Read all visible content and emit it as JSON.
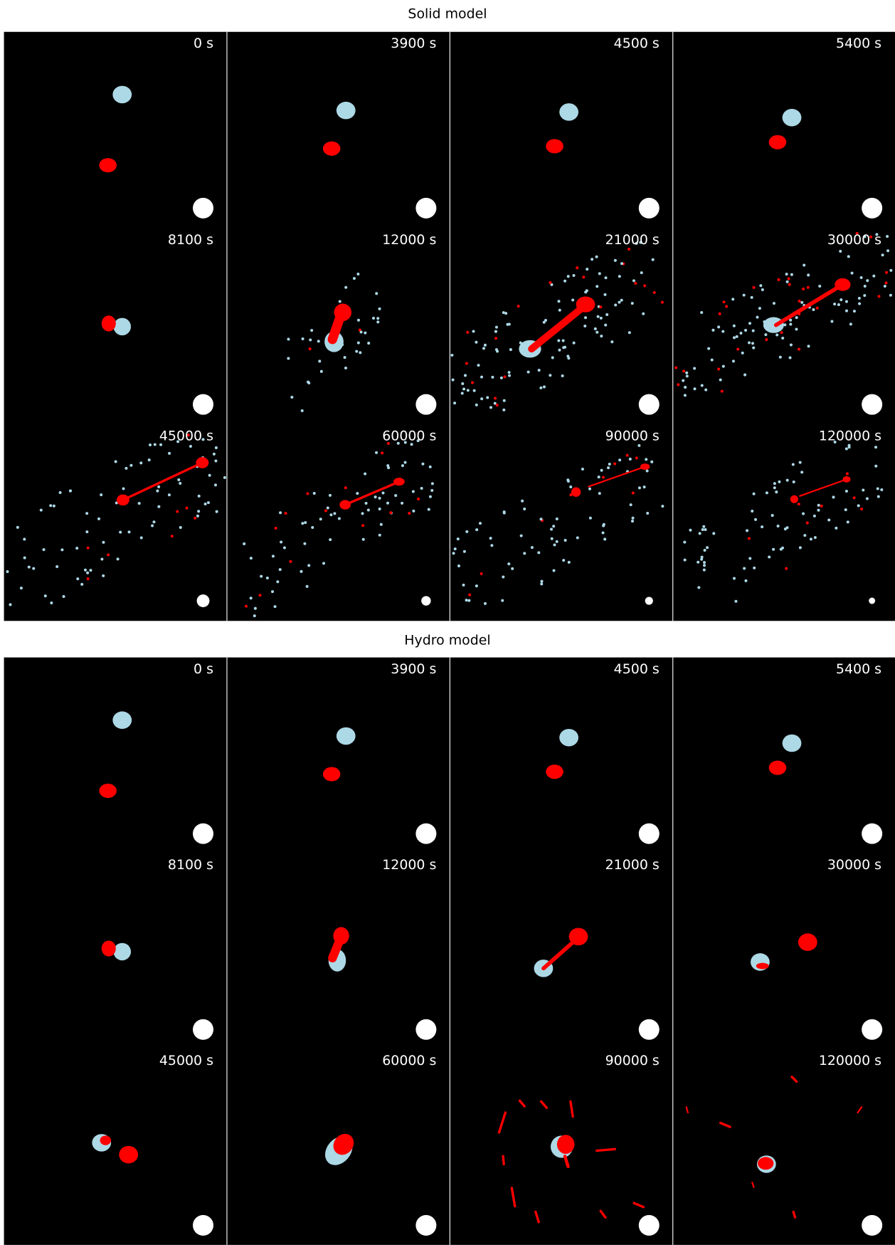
{
  "panels": [
    {
      "title": "Solid model",
      "frames": [
        "0 s",
        "3900 s",
        "4500 s",
        "5400 s",
        "8100 s",
        "12000 s",
        "21000 s",
        "30000 s",
        "45000 s",
        "60000 s",
        "90000 s",
        "120000 s"
      ]
    },
    {
      "title": "Hydro model",
      "frames": [
        "0 s",
        "3900 s",
        "4500 s",
        "5400 s",
        "8100 s",
        "12000 s",
        "21000 s",
        "30000 s",
        "45000 s",
        "60000 s",
        "90000 s",
        "120000 s"
      ]
    }
  ]
}
